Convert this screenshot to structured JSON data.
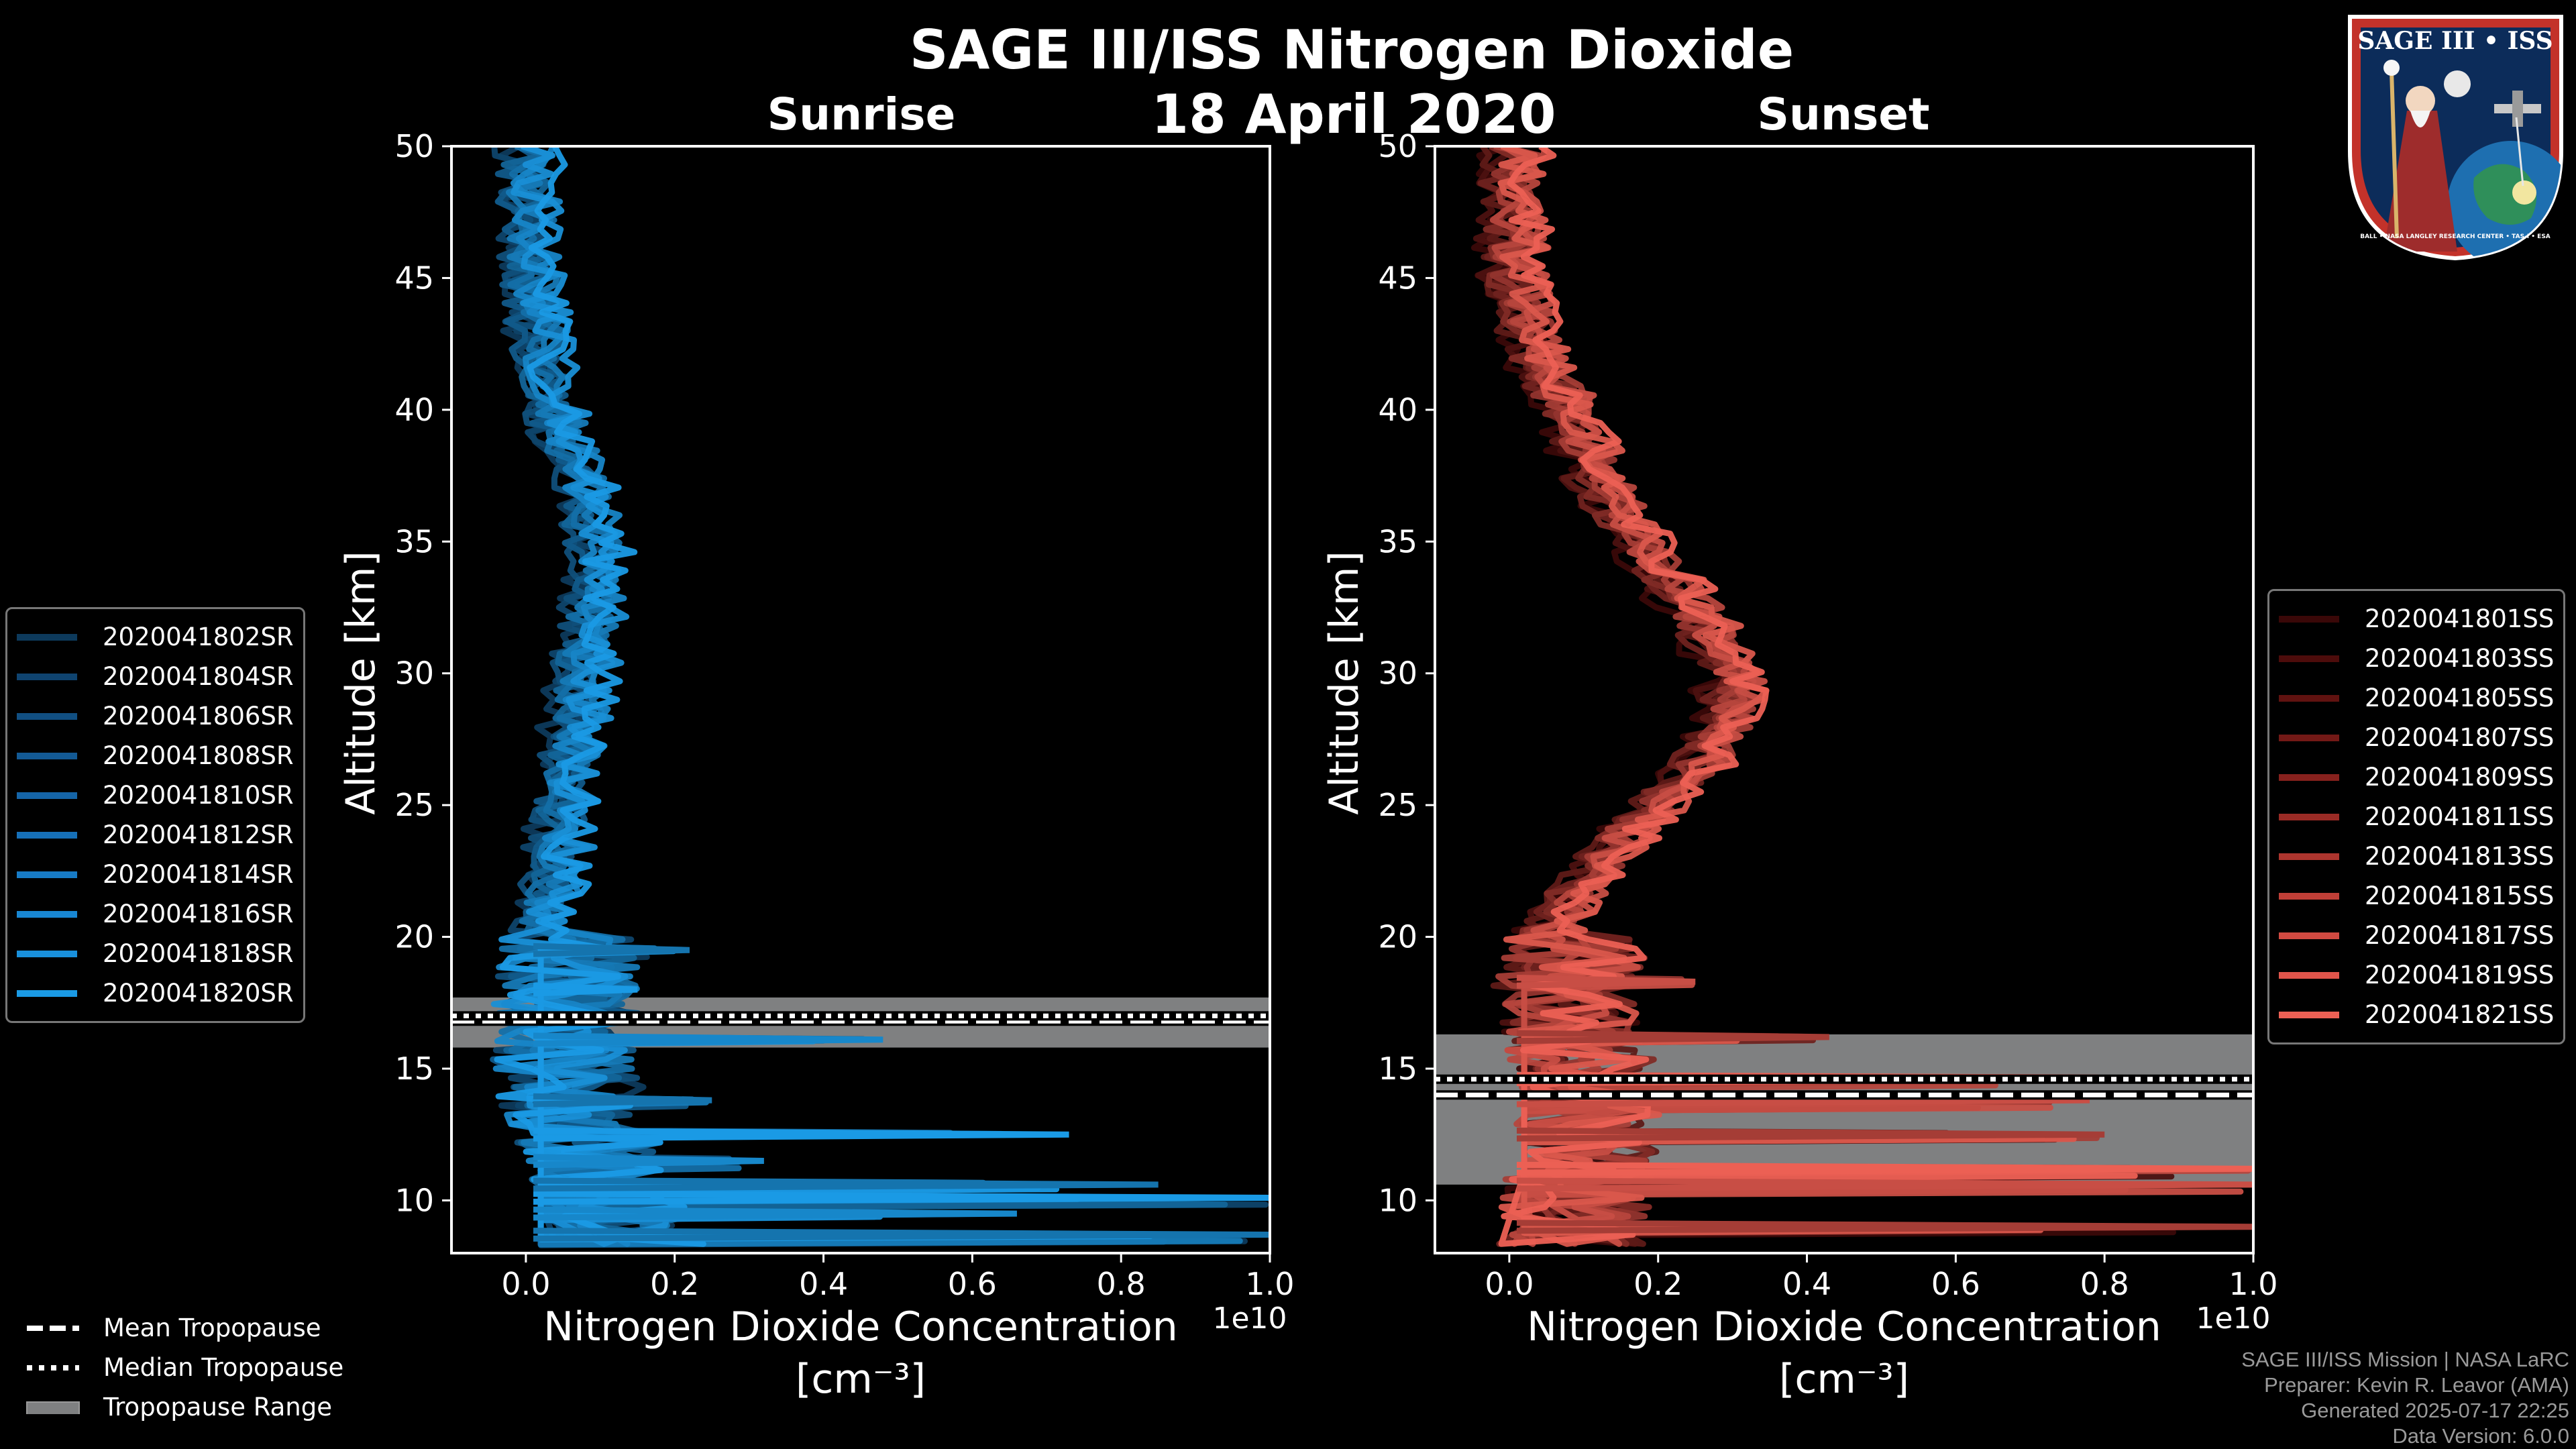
{
  "header": {
    "title": "SAGE III/ISS Nitrogen Dioxide",
    "date": "18 April 2020"
  },
  "badge": {
    "title": "SAGE III • ISS",
    "ring_text": "BALL • NASA LANGLEY RESEARCH CENTER • TAS-I • ESA"
  },
  "legend_sunrise": [
    {
      "label": "2020041802SR",
      "color": "#0d3a5c"
    },
    {
      "label": "2020041804SR",
      "color": "#0f4470"
    },
    {
      "label": "2020041806SR",
      "color": "#114f82"
    },
    {
      "label": "2020041808SR",
      "color": "#135a95"
    },
    {
      "label": "2020041810SR",
      "color": "#1565a8"
    },
    {
      "label": "2020041812SR",
      "color": "#1670b8"
    },
    {
      "label": "2020041814SR",
      "color": "#177bc6"
    },
    {
      "label": "2020041816SR",
      "color": "#1886d2"
    },
    {
      "label": "2020041818SR",
      "color": "#1990dc"
    },
    {
      "label": "2020041820SR",
      "color": "#1a9ae5"
    }
  ],
  "legend_sunset": [
    {
      "label": "2020041801SS",
      "color": "#3a0808"
    },
    {
      "label": "2020041803SS",
      "color": "#4d0c0b"
    },
    {
      "label": "2020041805SS",
      "color": "#601210"
    },
    {
      "label": "2020041807SS",
      "color": "#731916"
    },
    {
      "label": "2020041809SS",
      "color": "#87211d"
    },
    {
      "label": "2020041811SS",
      "color": "#9a2b25"
    },
    {
      "label": "2020041813SS",
      "color": "#ad352e"
    },
    {
      "label": "2020041815SS",
      "color": "#c03f37"
    },
    {
      "label": "2020041817SS",
      "color": "#d14a41"
    },
    {
      "label": "2020041819SS",
      "color": "#e0554b"
    },
    {
      "label": "2020041821SS",
      "color": "#ec6054"
    }
  ],
  "trop_legend": {
    "mean": "Mean Tropopause",
    "median": "Median Tropopause",
    "range": "Tropopause Range"
  },
  "footer": {
    "line1": "SAGE III/ISS Mission | NASA LaRC",
    "line2": "Preparer: Kevin R. Leavor (AMA)",
    "line3": "Generated 2025-07-17 22:25",
    "line4": "Data Version: 6.0.0"
  },
  "chart_data": [
    {
      "type": "line",
      "title": "Sunrise",
      "xlabel": "Nitrogen Dioxide Concentration",
      "xunit": "[cm⁻³]",
      "ylabel": "Altitude [km]",
      "xlim": [
        -0.1,
        1.0
      ],
      "ylim": [
        8,
        50
      ],
      "x_scale_label": "1e10",
      "xticks": [
        0.0,
        0.2,
        0.4,
        0.6,
        0.8,
        1.0
      ],
      "xtick_labels": [
        "0.0",
        "0.2",
        "0.4",
        "0.6",
        "0.8",
        "1.0"
      ],
      "yticks": [
        10,
        15,
        20,
        25,
        30,
        35,
        40,
        45,
        50
      ],
      "ytick_labels": [
        "10",
        "15",
        "20",
        "25",
        "30",
        "35",
        "40",
        "45",
        "50"
      ],
      "tropopause": {
        "mean": 16.8,
        "median": 17.0,
        "range": [
          15.8,
          17.7
        ]
      },
      "series_color_from": "#0d3a5c",
      "series_color_to": "#1a9ae5",
      "series_count": 10,
      "mean_profile": [
        {
          "alt": 50,
          "x": 0.0
        },
        {
          "alt": 48,
          "x": 0.005
        },
        {
          "alt": 45,
          "x": 0.01
        },
        {
          "alt": 42,
          "x": 0.02
        },
        {
          "alt": 40,
          "x": 0.04
        },
        {
          "alt": 37,
          "x": 0.08
        },
        {
          "alt": 34,
          "x": 0.1
        },
        {
          "alt": 32,
          "x": 0.09
        },
        {
          "alt": 30,
          "x": 0.08
        },
        {
          "alt": 28,
          "x": 0.07
        },
        {
          "alt": 26,
          "x": 0.06
        },
        {
          "alt": 24,
          "x": 0.05
        },
        {
          "alt": 22,
          "x": 0.035
        },
        {
          "alt": 20,
          "x": 0.02
        },
        {
          "alt": 18,
          "x": 0.015
        },
        {
          "alt": 16,
          "x": 0.01
        },
        {
          "alt": 14,
          "x": 0.02
        },
        {
          "alt": 12,
          "x": 0.05
        },
        {
          "alt": 10,
          "x": 0.08
        },
        {
          "alt": 8.3,
          "x": 0.1
        }
      ],
      "peaks": [
        {
          "alt": 8.7,
          "x": 1.0
        },
        {
          "alt": 9.5,
          "x": 0.66
        },
        {
          "alt": 10.1,
          "x": 1.0
        },
        {
          "alt": 10.6,
          "x": 0.85
        },
        {
          "alt": 11.5,
          "x": 0.32
        },
        {
          "alt": 12.5,
          "x": 0.73
        },
        {
          "alt": 13.8,
          "x": 0.25
        },
        {
          "alt": 16.1,
          "x": 0.48
        },
        {
          "alt": 18.0,
          "x": 0.15
        },
        {
          "alt": 19.5,
          "x": 0.22
        }
      ]
    },
    {
      "type": "line",
      "title": "Sunset",
      "xlabel": "Nitrogen Dioxide Concentration",
      "xunit": "[cm⁻³]",
      "ylabel": "Altitude [km]",
      "xlim": [
        -0.1,
        1.0
      ],
      "ylim": [
        8,
        50
      ],
      "x_scale_label": "1e10",
      "xticks": [
        0.0,
        0.2,
        0.4,
        0.6,
        0.8,
        1.0
      ],
      "xtick_labels": [
        "0.0",
        "0.2",
        "0.4",
        "0.6",
        "0.8",
        "1.0"
      ],
      "yticks": [
        10,
        15,
        20,
        25,
        30,
        35,
        40,
        45,
        50
      ],
      "ytick_labels": [
        "10",
        "15",
        "20",
        "25",
        "30",
        "35",
        "40",
        "45",
        "50"
      ],
      "tropopause": {
        "mean": 14.0,
        "median": 14.6,
        "range": [
          10.6,
          16.3
        ]
      },
      "series_color_from": "#3a0808",
      "series_color_to": "#ec6054",
      "series_count": 11,
      "mean_profile": [
        {
          "alt": 50,
          "x": 0.01
        },
        {
          "alt": 48,
          "x": 0.005
        },
        {
          "alt": 45,
          "x": 0.01
        },
        {
          "alt": 42,
          "x": 0.04
        },
        {
          "alt": 40,
          "x": 0.08
        },
        {
          "alt": 38,
          "x": 0.11
        },
        {
          "alt": 36,
          "x": 0.15
        },
        {
          "alt": 34,
          "x": 0.2
        },
        {
          "alt": 32,
          "x": 0.26
        },
        {
          "alt": 30,
          "x": 0.3
        },
        {
          "alt": 28,
          "x": 0.3
        },
        {
          "alt": 26,
          "x": 0.24
        },
        {
          "alt": 24,
          "x": 0.16
        },
        {
          "alt": 22,
          "x": 0.1
        },
        {
          "alt": 20,
          "x": 0.05
        },
        {
          "alt": 18,
          "x": 0.03
        },
        {
          "alt": 16,
          "x": 0.05
        },
        {
          "alt": 14,
          "x": 0.08
        },
        {
          "alt": 12,
          "x": 0.06
        },
        {
          "alt": 10,
          "x": 0.05
        },
        {
          "alt": 8.3,
          "x": 0.04
        }
      ],
      "peaks": [
        {
          "alt": 9.0,
          "x": 1.0
        },
        {
          "alt": 10.6,
          "x": 1.0
        },
        {
          "alt": 11.2,
          "x": 1.0
        },
        {
          "alt": 12.5,
          "x": 0.8
        },
        {
          "alt": 13.8,
          "x": 0.78
        },
        {
          "alt": 14.6,
          "x": 0.8
        },
        {
          "alt": 16.2,
          "x": 0.43
        },
        {
          "alt": 18.3,
          "x": 0.25
        }
      ]
    }
  ]
}
